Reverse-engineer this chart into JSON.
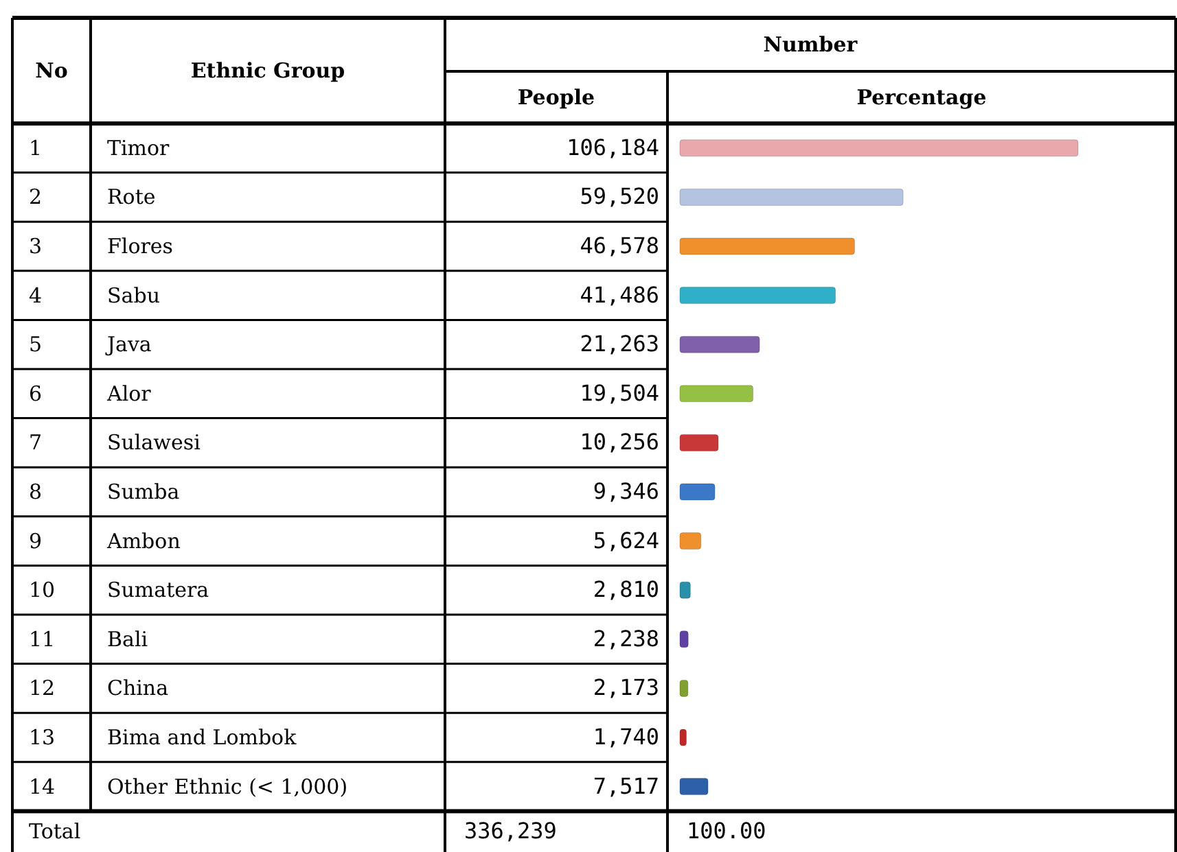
{
  "chart_data": {
    "type": "bar",
    "orientation": "horizontal",
    "ylabel": "Ethnic Group",
    "title": "Number",
    "xlabel": "Percentage",
    "categories": [
      "Timor",
      "Rote",
      "Flores",
      "Sabu",
      "Java",
      "Alor",
      "Sulawesi",
      "Sumba",
      "Ambon",
      "Sumatera",
      "Bali",
      "China",
      "Bima and Lombok",
      "Other Ethnic (< 1,000)"
    ],
    "values": [
      106184,
      59520,
      46578,
      41486,
      21263,
      19504,
      10256,
      9346,
      5624,
      2810,
      2238,
      2173,
      1740,
      7517
    ],
    "value_labels": [
      "106,184",
      "59,520",
      "46,578",
      "41,486",
      "21,263",
      "19,504",
      "10,256",
      "9,346",
      "5,624",
      "2,810",
      "2,238",
      "2,173",
      "1,740",
      "7,517"
    ],
    "colors": [
      "#e8a8ac",
      "#b4c4e0",
      "#f0902c",
      "#30b0c8",
      "#8060a8",
      "#94c044",
      "#c83838",
      "#3c78c8",
      "#f0902c",
      "#2890a8",
      "#6040a0",
      "#80a030",
      "#c02828",
      "#2c60a8"
    ],
    "annotations": [
      "No",
      "People",
      "Total",
      "336,239",
      "100.00",
      "1",
      "2",
      "3",
      "4",
      "5",
      "6",
      "7",
      "8",
      "9",
      "10",
      "11",
      "12",
      "13",
      "14"
    ]
  }
}
